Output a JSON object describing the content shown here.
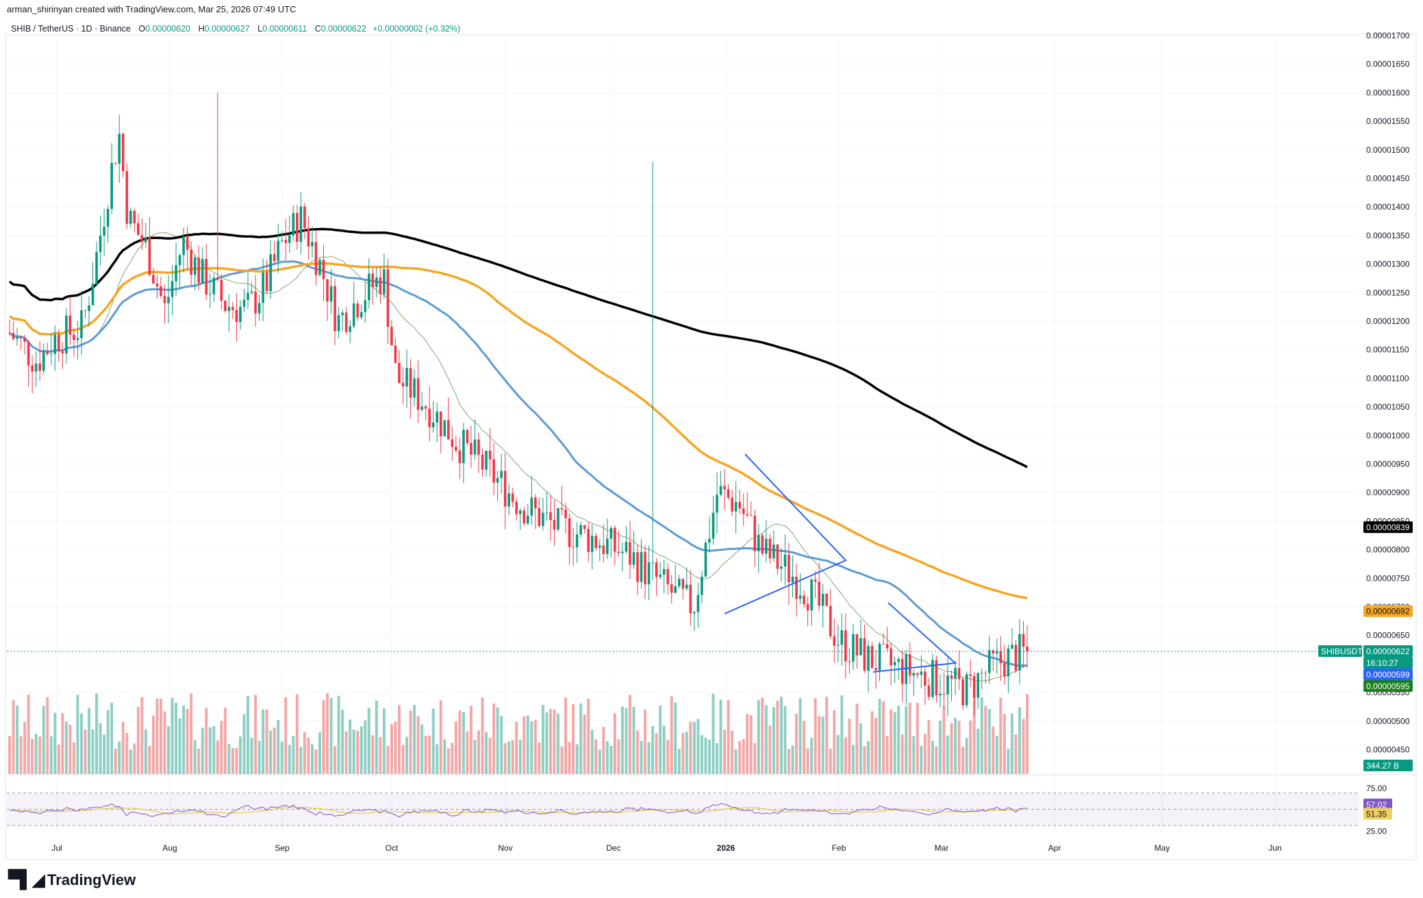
{
  "header": {
    "credit": "arman_shirinyan created with TradingView.com, Mar 25, 2026 07:49 UTC",
    "symbol": "SHIB / TetherUS · 1D · Binance",
    "open_label": "O",
    "open": "0.00000620",
    "high_label": "H",
    "high": "0.00000627",
    "low_label": "L",
    "low": "0.00000611",
    "close_label": "C",
    "close": "0.00000622",
    "change": "+0.00000002 (+0.32%)"
  },
  "footer": {
    "logo_text": "TradingView"
  },
  "colors": {
    "up": "#089981",
    "down": "#f23645",
    "vol_up": "#8ecfc4",
    "vol_down": "#f2a8a8",
    "ma200": "#000000",
    "ma100": "#f5a623",
    "ma50": "#5b9bd5",
    "ma20": "#7fa56f",
    "rsi_line": "#7e57c2",
    "rsi_ma": "#f0d060",
    "pattern": "#2962ff"
  },
  "chart_data": {
    "type": "candlestick",
    "symbol": "SHIBUSDT",
    "y_axis_ticks": [
      "0.00001700",
      "0.00001650",
      "0.00001600",
      "0.00001550",
      "0.00001500",
      "0.00001450",
      "0.00001400",
      "0.00001350",
      "0.00001300",
      "0.00001250",
      "0.00001200",
      "0.00001150",
      "0.00001100",
      "0.00001050",
      "0.00001000",
      "0.00000950",
      "0.00000900",
      "0.00000850",
      "0.00000800",
      "0.00000750",
      "0.00000700",
      "0.00000650",
      "0.00000600",
      "0.00000550",
      "0.00000500",
      "0.00000450"
    ],
    "x_axis_ticks": [
      "Jul",
      "Aug",
      "Sep",
      "Oct",
      "Nov",
      "Dec",
      "2026",
      "Feb",
      "Mar",
      "Apr",
      "May",
      "Jun"
    ],
    "ylim": [
      4.3e-06,
      1.71e-05
    ],
    "approx_daily_closes": {
      "Jul": 1.18e-05,
      "mid-Jul": 1.31e-05,
      "late-Jul": 1.48e-05,
      "Aug": 1.28e-05,
      "Sep": 1.26e-05,
      "mid-Sep": 1.35e-05,
      "Oct": 1.25e-05,
      "mid-Oct": 1.03e-05,
      "Nov": 9.5e-06,
      "Dec": 8.5e-06,
      "late-Dec": 7.2e-06,
      "2026": 9.2e-06,
      "Feb": 6.1e-06,
      "Mar": 5.7e-06,
      "last": 6.22e-06
    },
    "moving_averages": [
      {
        "name": "MA200",
        "last": "0.00000839"
      },
      {
        "name": "MA100",
        "last": "0.00000692"
      },
      {
        "name": "MA50",
        "last": "0.00000599"
      },
      {
        "name": "MA20",
        "last": "0.00000595"
      }
    ],
    "price_tags": {
      "symbol_label": "SHIBUSDT",
      "last_price": "0.00000622",
      "countdown": "16:10:27",
      "ma200": "0.00000839",
      "ma100": "0.00000692",
      "ma50": "0.00000599",
      "ma20": "0.00000595",
      "volume": "344.27 B"
    },
    "rsi": {
      "upper_band": "75.00",
      "lower_band": "25.00",
      "value": "57.02",
      "ma_value": "51.35"
    },
    "grid": true
  }
}
